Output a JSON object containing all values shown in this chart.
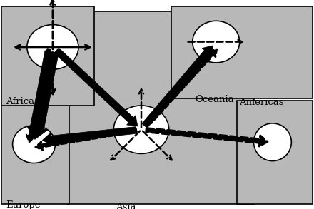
{
  "bg_color": "#b8b8b8",
  "white": "#ffffff",
  "black": "#000000",
  "fig_bg": "#ffffff",
  "border_lw": 1.2,
  "rects": {
    "main": [
      0.215,
      0.055,
      0.595,
      0.92
    ],
    "europe": [
      0.005,
      0.5,
      0.215,
      0.475
    ],
    "africa": [
      0.005,
      0.03,
      0.295,
      0.475
    ],
    "americas": [
      0.755,
      0.48,
      0.24,
      0.495
    ],
    "oceania": [
      0.545,
      0.03,
      0.45,
      0.44
    ]
  },
  "circles": {
    "europe": [
      0.108,
      0.69,
      0.068,
      0.09
    ],
    "asia": [
      0.45,
      0.62,
      0.088,
      0.115
    ],
    "africa": [
      0.168,
      0.225,
      0.082,
      0.107
    ],
    "americas": [
      0.868,
      0.68,
      0.06,
      0.09
    ],
    "oceania": [
      0.688,
      0.2,
      0.075,
      0.1
    ]
  },
  "labels": {
    "europe": [
      0.018,
      0.96,
      "Europe"
    ],
    "asia": [
      0.368,
      0.968,
      "Asia"
    ],
    "africa": [
      0.018,
      0.465,
      "Africa"
    ],
    "americas": [
      0.762,
      0.468,
      "Americas"
    ],
    "oceania": [
      0.62,
      0.455,
      "Oceania"
    ]
  },
  "label_fontsize": 9.5
}
